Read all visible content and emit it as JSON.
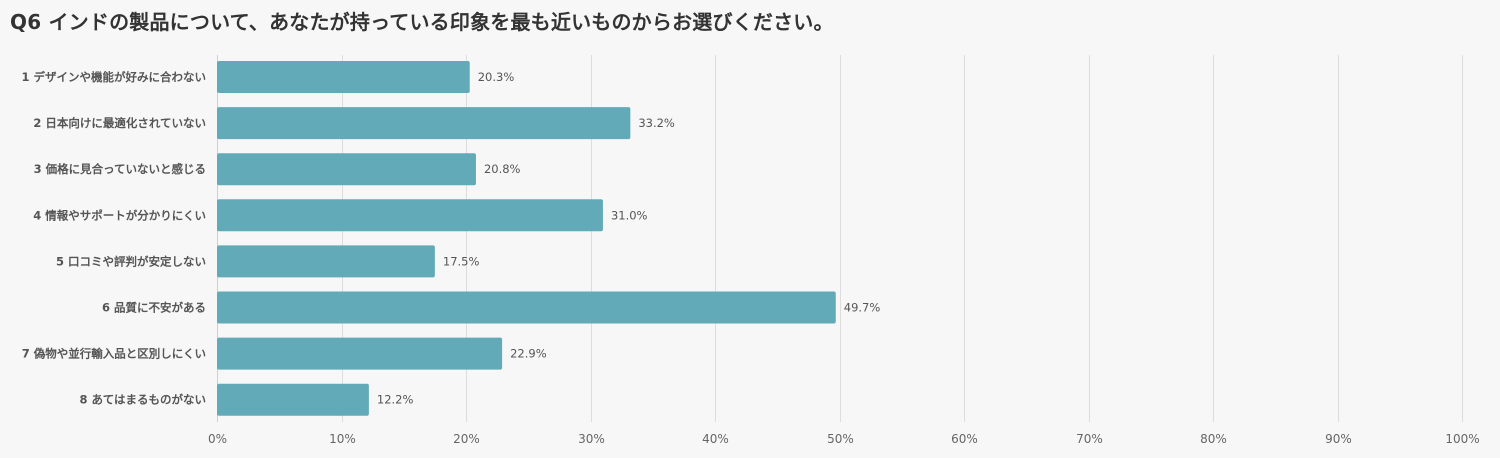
{
  "chart_data": {
    "type": "bar",
    "orientation": "horizontal",
    "title": "Q6 インドの製品について、あなたが持っている印象を最も近いものからお選びください。",
    "categories": [
      "1 デザインや機能が好みに合わない",
      "2 日本向けに最適化されていない",
      "3 価格に見合っていないと感じる",
      "4 情報やサポートが分かりにくい",
      "5 口コミや評判が安定しない",
      "6 品質に不安がある",
      "7 偽物や並行輸入品と区別しにくい",
      "8 あてはまるものがない"
    ],
    "values": [
      20.3,
      33.2,
      20.8,
      31.0,
      17.5,
      49.7,
      22.9,
      12.2
    ],
    "value_labels": [
      "20.3%",
      "33.2%",
      "20.8%",
      "31.0%",
      "17.5%",
      "49.7%",
      "22.9%",
      "12.2%"
    ],
    "xlim": [
      0,
      100
    ],
    "x_ticks": [
      "0%",
      "10%",
      "20%",
      "30%",
      "40%",
      "50%",
      "60%",
      "70%",
      "80%",
      "90%",
      "100%"
    ],
    "grid": true,
    "bar_color": "#63aab9"
  }
}
